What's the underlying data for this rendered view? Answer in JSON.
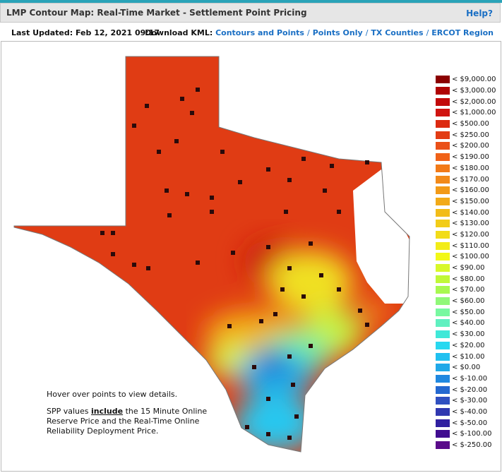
{
  "header": {
    "title": "LMP Contour Map: Real-Time Market - Settlement Point Pricing",
    "help": "Help?"
  },
  "toolbar": {
    "last_updated": "Last Updated: Feb 12, 2021 09:17",
    "download_label": "Download KML:",
    "separator": "/",
    "links": [
      "Contours and Points",
      "Points Only",
      "TX Counties",
      "ERCOT Region"
    ]
  },
  "note": {
    "line1": "Hover over points to view details.",
    "before": "SPP values",
    "emphasis": "include",
    "after": "the 15 Minute Online Reserve Price and the Real-Time Online Reliability Deployment Price."
  },
  "legend": [
    {
      "label": "< $9,000.00",
      "color": "#8b0000"
    },
    {
      "label": "< $3,000.00",
      "color": "#b00404"
    },
    {
      "label": "< $2,000.00",
      "color": "#c20a0a"
    },
    {
      "label": "< $1,000.00",
      "color": "#d01410"
    },
    {
      "label": "< $500.00",
      "color": "#dc2a10"
    },
    {
      "label": "< $250.00",
      "color": "#e23c14"
    },
    {
      "label": "< $200.00",
      "color": "#ea5018"
    },
    {
      "label": "< $190.00",
      "color": "#f06218"
    },
    {
      "label": "< $180.00",
      "color": "#f27a18"
    },
    {
      "label": "< $170.00",
      "color": "#f28a1a"
    },
    {
      "label": "< $160.00",
      "color": "#f29a18"
    },
    {
      "label": "< $150.00",
      "color": "#f2aa18"
    },
    {
      "label": "< $140.00",
      "color": "#f2bc18"
    },
    {
      "label": "< $130.00",
      "color": "#f2cc18"
    },
    {
      "label": "< $120.00",
      "color": "#f2dc18"
    },
    {
      "label": "< $110.00",
      "color": "#f2ec18"
    },
    {
      "label": "< $100.00",
      "color": "#f2f818"
    },
    {
      "label": "< $90.00",
      "color": "#d8f82a"
    },
    {
      "label": "< $80.00",
      "color": "#c0f838"
    },
    {
      "label": "< $70.00",
      "color": "#a8f850"
    },
    {
      "label": "< $60.00",
      "color": "#90f878"
    },
    {
      "label": "< $50.00",
      "color": "#78f8a0"
    },
    {
      "label": "< $40.00",
      "color": "#60f0c0"
    },
    {
      "label": "< $30.00",
      "color": "#40e8d8"
    },
    {
      "label": "< $20.00",
      "color": "#28d8f0"
    },
    {
      "label": "< $10.00",
      "color": "#20c0f0"
    },
    {
      "label": "< $0.00",
      "color": "#20a8e8"
    },
    {
      "label": "< $-10.00",
      "color": "#2088e0"
    },
    {
      "label": "< $-20.00",
      "color": "#2468d0"
    },
    {
      "label": "< $-30.00",
      "color": "#3050c0"
    },
    {
      "label": "< $-40.00",
      "color": "#3038b0"
    },
    {
      "label": "< $-50.00",
      "color": "#3020a0"
    },
    {
      "label": "< $-100.00",
      "color": "#400c90"
    },
    {
      "label": "< $-250.00",
      "color": "#5a0a8a"
    }
  ]
}
